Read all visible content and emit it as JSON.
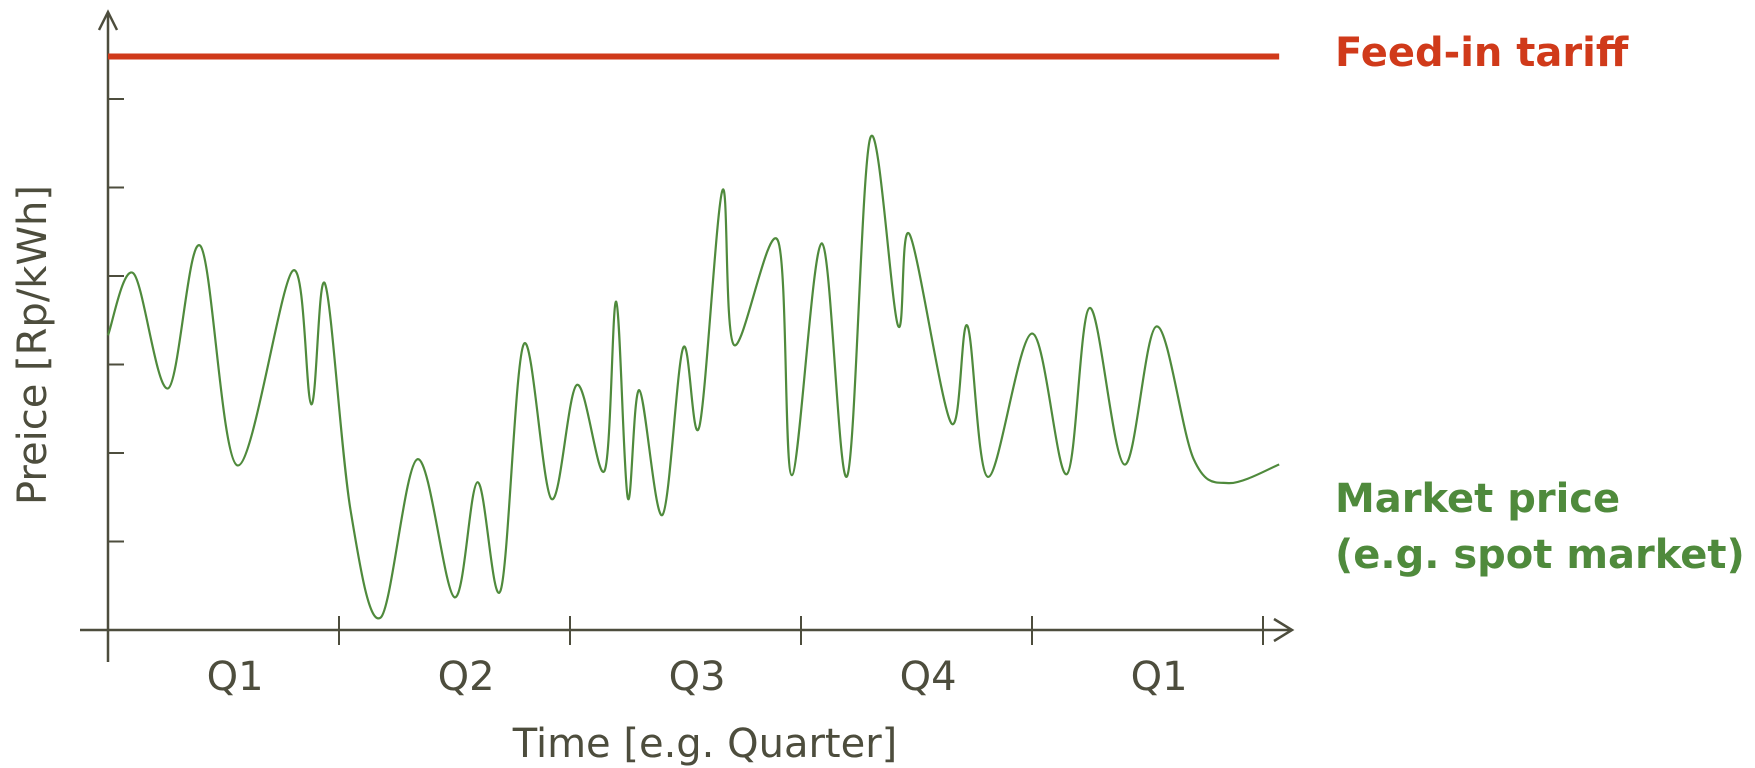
{
  "colors": {
    "axis": "#4d4d3d",
    "tariff": "#d03a1a",
    "market": "#4f8a3c",
    "text": "#4d4d3d"
  },
  "chart_data": {
    "type": "line",
    "xlabel": "Time [e.g. Quarter]",
    "ylabel": "Preice [Rp/kWh]",
    "categories": [
      "Q1",
      "Q2",
      "Q3",
      "Q4",
      "Q1"
    ],
    "xlim": [
      0,
      5.1
    ],
    "ylim": [
      0,
      7
    ],
    "grid": false,
    "series": [
      {
        "name": "Feed-in tariff",
        "x": [
          0,
          5.07
        ],
        "values": [
          6.48,
          6.48
        ]
      },
      {
        "name": "Market price",
        "name_line2": "(e.g. spot market)",
        "x": [
          0.0,
          0.11,
          0.26,
          0.4,
          0.56,
          0.8,
          0.88,
          0.94,
          1.05,
          1.18,
          1.34,
          1.5,
          1.6,
          1.7,
          1.8,
          1.92,
          2.03,
          2.15,
          2.2,
          2.25,
          2.3,
          2.4,
          2.49,
          2.56,
          2.66,
          2.71,
          2.9,
          2.96,
          3.09,
          3.2,
          3.3,
          3.42,
          3.47,
          3.65,
          3.72,
          3.81,
          4.0,
          4.15,
          4.25,
          4.4,
          4.54,
          4.7,
          4.85,
          5.07
        ],
        "values": [
          3.33,
          4.03,
          2.73,
          4.34,
          1.86,
          4.06,
          2.55,
          3.91,
          1.35,
          0.14,
          1.93,
          0.37,
          1.67,
          0.45,
          3.23,
          1.48,
          2.77,
          1.8,
          3.71,
          1.49,
          2.71,
          1.3,
          3.19,
          2.3,
          4.97,
          3.22,
          4.4,
          1.75,
          4.37,
          1.74,
          5.56,
          3.44,
          4.47,
          2.34,
          3.44,
          1.73,
          3.35,
          1.76,
          3.64,
          1.87,
          3.43,
          1.93,
          1.66,
          1.87
        ]
      }
    ]
  }
}
